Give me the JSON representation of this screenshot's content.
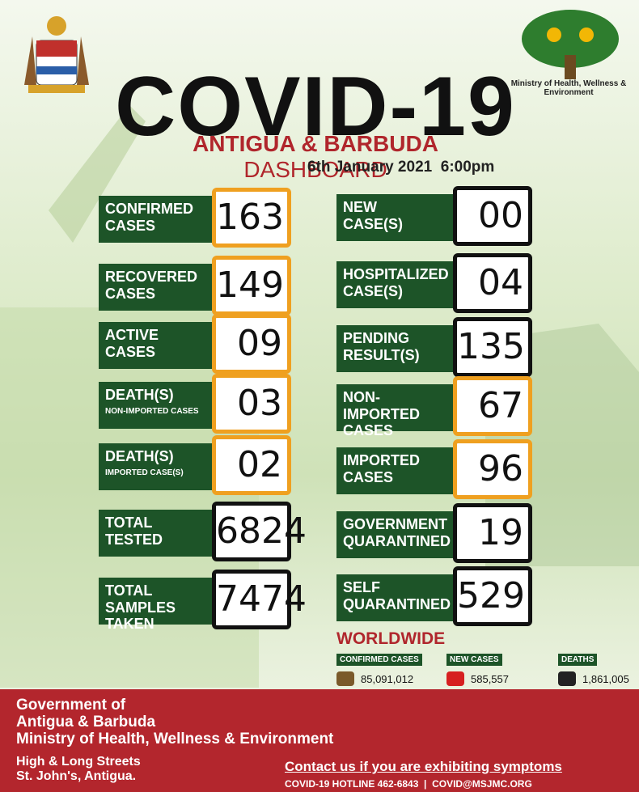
{
  "header": {
    "title": "COVID-19",
    "country": "ANTIGUA & BARBUDA",
    "dashboard": "DASHBOARD",
    "date": "6th January 2021  6:00pm",
    "ministry": "Ministry of Health, Wellness & Environment"
  },
  "stats": [
    {
      "label": [
        "CONFIRMED",
        "CASES"
      ],
      "value": "163",
      "accent": "#efa020"
    },
    {
      "label": [
        "RECOVERED",
        "CASES"
      ],
      "value": "149",
      "accent": "#efa020"
    },
    {
      "label": [
        "ACTIVE",
        "CASES"
      ],
      "value": "09",
      "accent": "#efa020"
    },
    {
      "label": [
        "DEATH(S)"
      ],
      "note": "NON-IMPORTED CASES",
      "value": "03",
      "accent": "#efa020"
    },
    {
      "label": [
        "DEATH(S)"
      ],
      "note": "IMPORTED CASE(S)",
      "value": "02",
      "accent": "#efa020"
    },
    {
      "label": [
        "TOTAL",
        "TESTED"
      ],
      "value": "6824",
      "accent": "#111111"
    },
    {
      "label": [
        "TOTAL SAMPLES",
        "TAKEN"
      ],
      "value": "7474",
      "accent": "#111111"
    },
    {
      "label": [
        "NEW",
        "CASE(S)"
      ],
      "value": "00",
      "accent": "#111111"
    },
    {
      "label": [
        "HOSPITALIZED",
        "CASE(S)"
      ],
      "value": "04",
      "accent": "#111111"
    },
    {
      "label": [
        "PENDING",
        "RESULT(S)"
      ],
      "value": "135",
      "accent": "#111111"
    },
    {
      "label": [
        "NON-IMPORTED",
        "CASES"
      ],
      "value": "67",
      "accent": "#efa020"
    },
    {
      "label": [
        "IMPORTED",
        "CASES"
      ],
      "value": "96",
      "accent": "#efa020"
    },
    {
      "label": [
        "GOVERNMENT",
        "QUARANTINED"
      ],
      "value": "19",
      "accent": "#111111"
    },
    {
      "label": [
        "SELF",
        "QUARANTINED"
      ],
      "value": "529",
      "accent": "#111111"
    }
  ],
  "worldwide": {
    "title": "WORLDWIDE",
    "items": [
      {
        "label": "CONFIRMED CASES",
        "value": "85,091,012"
      },
      {
        "label": "NEW CASES",
        "value": "585,557"
      },
      {
        "label": "DEATHS",
        "value": "1,861,005"
      }
    ]
  },
  "footer": {
    "org": [
      "Government of",
      "Antigua & Barbuda",
      "Ministry of Health, Wellness & Environment"
    ],
    "address": [
      "High & Long Streets",
      "St. John's, Antigua."
    ],
    "contact": "Contact us if you are exhibiting symptoms",
    "hotline": "COVID-19 HOTLINE 462-6843  |  COVID@MSJMC.ORG"
  }
}
